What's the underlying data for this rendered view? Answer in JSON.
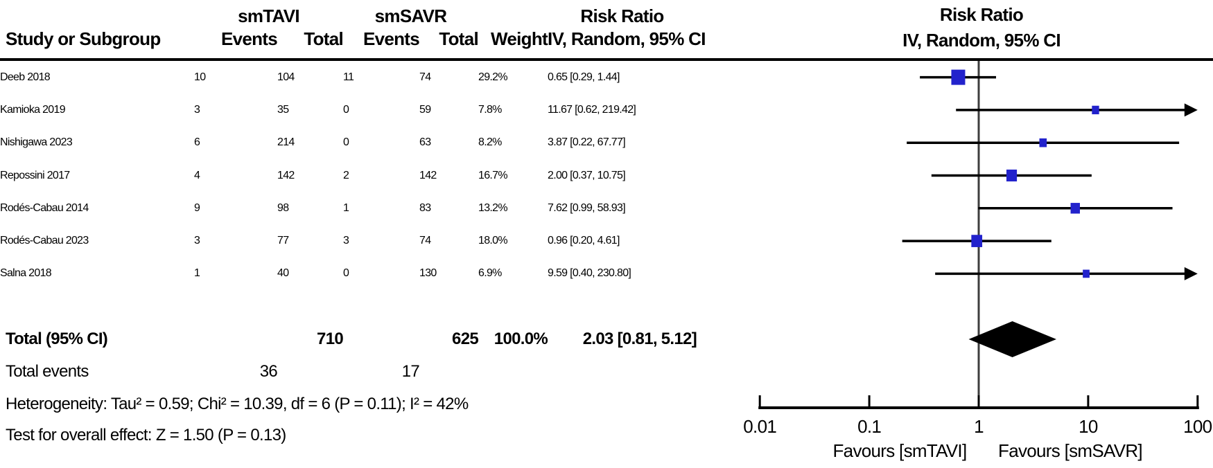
{
  "table": {
    "group1_label": "smTAVI",
    "group2_label": "smSAVR",
    "effect_col_title": "Risk Ratio",
    "col_headers": {
      "study": "Study or Subgroup",
      "events1": "Events",
      "total1": "Total",
      "events2": "Events",
      "total2": "Total",
      "weight": "Weight",
      "ci": "IV, Random, 95% CI"
    },
    "rows": [
      {
        "study": "Deeb 2018",
        "events1": "10",
        "total1": "104",
        "events2": "11",
        "total2": "74",
        "weight": "29.2%",
        "ci": "0.65 [0.29, 1.44]"
      },
      {
        "study": "Kamioka 2019",
        "events1": "3",
        "total1": "35",
        "events2": "0",
        "total2": "59",
        "weight": "7.8%",
        "ci": "11.67 [0.62, 219.42]"
      },
      {
        "study": "Nishigawa 2023",
        "events1": "6",
        "total1": "214",
        "events2": "0",
        "total2": "63",
        "weight": "8.2%",
        "ci": "3.87 [0.22, 67.77]"
      },
      {
        "study": "Repossini 2017",
        "events1": "4",
        "total1": "142",
        "events2": "2",
        "total2": "142",
        "weight": "16.7%",
        "ci": "2.00 [0.37, 10.75]"
      },
      {
        "study": "Rodés-Cabau 2014",
        "events1": "9",
        "total1": "98",
        "events2": "1",
        "total2": "83",
        "weight": "13.2%",
        "ci": "7.62 [0.99, 58.93]"
      },
      {
        "study": "Rodés-Cabau 2023",
        "events1": "3",
        "total1": "77",
        "events2": "3",
        "total2": "74",
        "weight": "18.0%",
        "ci": "0.96 [0.20, 4.61]"
      },
      {
        "study": "Salna 2018",
        "events1": "1",
        "total1": "40",
        "events2": "0",
        "total2": "130",
        "weight": "6.9%",
        "ci": "9.59 [0.40, 230.80]"
      }
    ],
    "total_row": {
      "label": "Total (95% CI)",
      "total1": "710",
      "total2": "625",
      "weight": "100.0%",
      "ci": "2.03 [0.81, 5.12]"
    },
    "total_events_row": {
      "label": "Total events",
      "events1": "36",
      "events2": "17"
    },
    "heterogeneity": "Heterogeneity: Tau² = 0.59; Chi² = 10.39, df = 6 (P = 0.11); I² = 42%",
    "overall_effect": "Test for overall effect: Z = 1.50 (P = 0.13)"
  },
  "plot": {
    "title_line1": "Risk Ratio",
    "title_line2": "IV, Random, 95% CI",
    "tick_labels": [
      "0.01",
      "0.1",
      "1",
      "10",
      "100"
    ],
    "favours_left": "Favours [smTAVI]",
    "favours_right": "Favours [smSAVR]",
    "marker_color": "#2222cc",
    "line_color": "#000000",
    "zero_line_color": "#3d3d3d",
    "diamond_color": "#000000"
  },
  "chart_data": {
    "type": "forest",
    "effect_measure": "Risk Ratio",
    "model": "IV, Random, 95% CI",
    "x_scale": "log",
    "xlim": [
      0.01,
      100
    ],
    "x_ticks": [
      0.01,
      0.1,
      1,
      10,
      100
    ],
    "studies": [
      {
        "name": "Deeb 2018",
        "events_tavi": 10,
        "total_tavi": 104,
        "events_savr": 11,
        "total_savr": 74,
        "weight_pct": 29.2,
        "rr": 0.65,
        "ci_low": 0.29,
        "ci_high": 1.44
      },
      {
        "name": "Kamioka 2019",
        "events_tavi": 3,
        "total_tavi": 35,
        "events_savr": 0,
        "total_savr": 59,
        "weight_pct": 7.8,
        "rr": 11.67,
        "ci_low": 0.62,
        "ci_high": 219.42
      },
      {
        "name": "Nishigawa 2023",
        "events_tavi": 6,
        "total_tavi": 214,
        "events_savr": 0,
        "total_savr": 63,
        "weight_pct": 8.2,
        "rr": 3.87,
        "ci_low": 0.22,
        "ci_high": 67.77
      },
      {
        "name": "Repossini 2017",
        "events_tavi": 4,
        "total_tavi": 142,
        "events_savr": 2,
        "total_savr": 142,
        "weight_pct": 16.7,
        "rr": 2.0,
        "ci_low": 0.37,
        "ci_high": 10.75
      },
      {
        "name": "Rodés-Cabau 2014",
        "events_tavi": 9,
        "total_tavi": 98,
        "events_savr": 1,
        "total_savr": 83,
        "weight_pct": 13.2,
        "rr": 7.62,
        "ci_low": 0.99,
        "ci_high": 58.93
      },
      {
        "name": "Rodés-Cabau 2023",
        "events_tavi": 3,
        "total_tavi": 77,
        "events_savr": 3,
        "total_savr": 74,
        "weight_pct": 18.0,
        "rr": 0.96,
        "ci_low": 0.2,
        "ci_high": 4.61
      },
      {
        "name": "Salna 2018",
        "events_tavi": 1,
        "total_tavi": 40,
        "events_savr": 0,
        "total_savr": 130,
        "weight_pct": 6.9,
        "rr": 9.59,
        "ci_low": 0.4,
        "ci_high": 230.8
      }
    ],
    "overall": {
      "label": "Total (95% CI)",
      "total_tavi": 710,
      "total_savr": 625,
      "weight_pct": 100.0,
      "rr": 2.03,
      "ci_low": 0.81,
      "ci_high": 5.12
    },
    "total_events": {
      "tavi": 36,
      "savr": 17
    },
    "heterogeneity": {
      "tau2": 0.59,
      "chi2": 10.39,
      "df": 6,
      "p": 0.11,
      "i2_pct": 42
    },
    "overall_effect_test": {
      "z": 1.5,
      "p": 0.13
    }
  }
}
